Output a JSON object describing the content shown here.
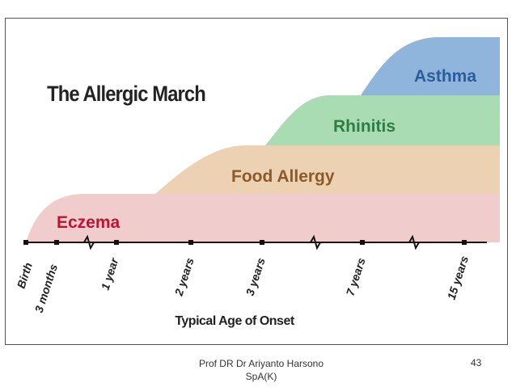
{
  "title": "The Allergic March",
  "stages": [
    {
      "label": "Eczema",
      "color": "#f0cccc",
      "text_color": "#c8102e"
    },
    {
      "label": "Food Allergy",
      "color": "#ecd2b2",
      "text_color": "#8b5a2b"
    },
    {
      "label": "Rhinitis",
      "color": "#a9dcb2",
      "text_color": "#2e7d45"
    },
    {
      "label": "Asthma",
      "color": "#8fb5dc",
      "text_color": "#2a5d9a"
    }
  ],
  "ticks": [
    "Birth",
    "3 months",
    "1 year",
    "2 years",
    "3 years",
    "7 years",
    "15 years"
  ],
  "axis_label": "Typical Age of Onset",
  "footer": {
    "author_line1": "Prof DR Dr Ariyanto Harsono",
    "author_line2": "SpA(K)",
    "page_number": "43"
  }
}
